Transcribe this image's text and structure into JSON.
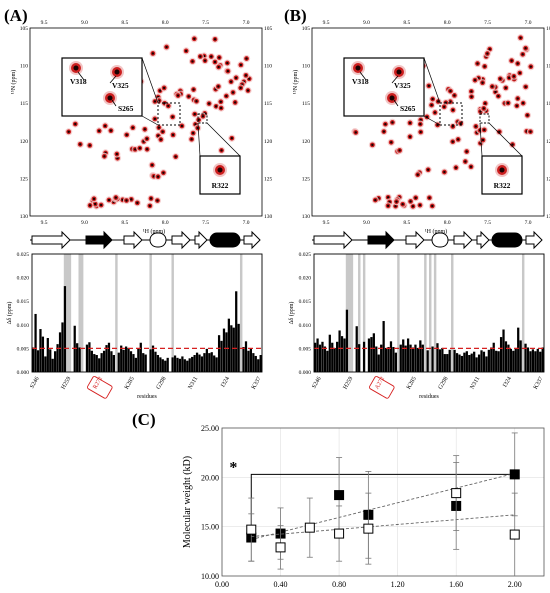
{
  "panel_labels": {
    "a": "(A)",
    "b": "(B)",
    "c": "(C)"
  },
  "colors": {
    "peak_dark": "#1a0000",
    "peak_red": "#cc1f1f",
    "peak_halo": "#f2c4c4",
    "threshold": "#d62020",
    "shade": "#c8c8c8",
    "bar": "#000000"
  },
  "nmr_axes": {
    "top_ticks": [
      "9.5",
      "9.0",
      "8.5",
      "8.0",
      "7.5",
      "7.0"
    ],
    "bottom_ticks": [
      "9.5",
      "9.0",
      "8.5",
      "8.0",
      "7.5",
      "7.0"
    ],
    "y_ticks": [
      "105",
      "110",
      "115",
      "120",
      "125",
      "130"
    ],
    "xlabel": "¹H (ppm)",
    "ylabel": "¹⁵N (ppm)"
  },
  "spectrum_A": {
    "callout_main_labels": [
      "V318",
      "V325",
      "S265"
    ],
    "callout_small_label": "R322"
  },
  "spectrum_B": {
    "callout_main_labels": [
      "V318",
      "V325",
      "S265"
    ],
    "callout_small_label": "R322"
  },
  "csp_axes": {
    "ylabel": "Δδ (ppm)",
    "y_ticks": [
      "0.000",
      "0.005",
      "0.010",
      "0.015",
      "0.020",
      "0.025"
    ],
    "x_ticks": [
      "S246",
      "H259",
      "R272",
      "K285",
      "G298",
      "N311",
      "I324",
      "K337"
    ],
    "xlabel": "residues",
    "boxed_tick_A": "R272",
    "boxed_tick_B": "A272"
  },
  "chart_data": [
    {
      "type": "bar",
      "panel": "A",
      "threshold": 0.005,
      "ylim": [
        0,
        0.025
      ],
      "x_range": [
        246,
        339
      ],
      "shaded_ranges": [
        [
          259,
          261
        ],
        [
          265,
          266
        ],
        [
          280,
          280
        ],
        [
          294,
          294
        ],
        [
          303,
          303
        ],
        [
          331,
          331
        ]
      ],
      "residues_start": 246,
      "values": [
        0.0052,
        0.0123,
        0.0046,
        0.0091,
        0.0075,
        0.0033,
        0.0072,
        0.0048,
        0.0028,
        0.0044,
        0.0059,
        0.0084,
        0.0105,
        0.0182,
        0.0,
        0.0,
        0.0,
        0.0098,
        0.0061,
        0.0052,
        0.0,
        0.0,
        0.0058,
        0.0063,
        0.0045,
        0.0038,
        0.0036,
        0.0029,
        0.004,
        0.0045,
        0.0057,
        0.0062,
        0.0044,
        0.0036,
        0.0,
        0.0041,
        0.0056,
        0.0047,
        0.0054,
        0.0051,
        0.0044,
        0.0038,
        0.003,
        0.0049,
        0.0062,
        0.004,
        0.0037,
        0.0,
        0.0048,
        0.0056,
        0.0043,
        0.0036,
        0.0031,
        0.0027,
        0.0024,
        0.003,
        0.0,
        0.0031,
        0.0035,
        0.003,
        0.0028,
        0.0033,
        0.0027,
        0.0024,
        0.0029,
        0.0032,
        0.0036,
        0.0041,
        0.0037,
        0.0033,
        0.004,
        0.0049,
        0.004,
        0.0042,
        0.0035,
        0.0031,
        0.0078,
        0.0066,
        0.0092,
        0.0084,
        0.0113,
        0.0099,
        0.0094,
        0.0171,
        0.0102,
        0.0,
        0.0053,
        0.0065,
        0.0045,
        0.0049,
        0.004,
        0.0034,
        0.0027,
        0.0036
      ]
    },
    {
      "type": "bar",
      "panel": "B",
      "threshold": 0.005,
      "ylim": [
        0,
        0.025
      ],
      "x_range": [
        246,
        339
      ],
      "shaded_ranges": [
        [
          259,
          261
        ],
        [
          264,
          264
        ],
        [
          266,
          266
        ],
        [
          280,
          280
        ],
        [
          291,
          291
        ],
        [
          293,
          293
        ],
        [
          295,
          295
        ],
        [
          302,
          302
        ],
        [
          331,
          331
        ]
      ],
      "residues_start": 246,
      "values": [
        0.0062,
        0.0071,
        0.0058,
        0.0064,
        0.0054,
        0.0045,
        0.0079,
        0.0062,
        0.0051,
        0.0064,
        0.0088,
        0.0076,
        0.0071,
        0.0132,
        0.0,
        0.0,
        0.0,
        0.0097,
        0.0059,
        0.0,
        0.0064,
        0.0,
        0.0071,
        0.0074,
        0.0082,
        0.0054,
        0.0037,
        0.0058,
        0.0108,
        0.0051,
        0.0053,
        0.0065,
        0.0053,
        0.0041,
        0.0,
        0.0058,
        0.0069,
        0.0056,
        0.0071,
        0.0058,
        0.0052,
        0.0058,
        0.0051,
        0.0067,
        0.0058,
        0.0,
        0.0046,
        0.0,
        0.0054,
        0.0,
        0.0061,
        0.0048,
        0.0051,
        0.0038,
        0.0038,
        0.0047,
        0.0,
        0.0047,
        0.004,
        0.0037,
        0.0034,
        0.0041,
        0.0044,
        0.0036,
        0.0039,
        0.0043,
        0.0031,
        0.0037,
        0.0046,
        0.0043,
        0.0033,
        0.0047,
        0.0052,
        0.0062,
        0.0045,
        0.0044,
        0.0074,
        0.009,
        0.0065,
        0.0058,
        0.0049,
        0.0045,
        0.0051,
        0.0094,
        0.0067,
        0.0,
        0.006,
        0.0052,
        0.0044,
        0.0048,
        0.0044,
        0.0049,
        0.0043,
        0.0052
      ]
    },
    {
      "type": "scatter",
      "panel": "C",
      "ylabel": "Molecular weight (kD)",
      "xlim": [
        0,
        2.2
      ],
      "ylim": [
        10,
        25
      ],
      "x_ticks": [
        "0.00",
        "0.40",
        "0.80",
        "1.20",
        "1.60",
        "2.00"
      ],
      "y_ticks": [
        "10.00",
        "15.00",
        "20.00",
        "25.00"
      ],
      "significance": "*",
      "series": [
        {
          "marker": "filled-square",
          "points": [
            {
              "x": 0.2,
              "y": 13.9,
              "err": 2.4
            },
            {
              "x": 0.4,
              "y": 14.3,
              "err": 2.6
            },
            {
              "x": 0.8,
              "y": 18.2,
              "err": 3.8
            },
            {
              "x": 1.0,
              "y": 16.2,
              "err": 4.4
            },
            {
              "x": 1.6,
              "y": 17.1,
              "err": 4.4
            },
            {
              "x": 2.0,
              "y": 20.3,
              "err": 4.2
            }
          ],
          "trend": {
            "x0": 0.2,
            "y0": 13.7,
            "x1": 2.0,
            "y1": 20.4
          }
        },
        {
          "marker": "open-square",
          "points": [
            {
              "x": 0.2,
              "y": 14.7,
              "err": 3.2
            },
            {
              "x": 0.4,
              "y": 12.9,
              "err": 2.2
            },
            {
              "x": 0.6,
              "y": 14.9,
              "err": 3.0
            },
            {
              "x": 0.8,
              "y": 14.3,
              "err": 2.8
            },
            {
              "x": 1.0,
              "y": 14.8,
              "err": 3.6
            },
            {
              "x": 1.6,
              "y": 18.4,
              "err": 3.8
            },
            {
              "x": 2.0,
              "y": 14.2,
              "err": 4.2
            }
          ],
          "trend": {
            "x0": 0.2,
            "y0": 14.0,
            "x1": 2.0,
            "y1": 16.2
          }
        }
      ]
    }
  ]
}
